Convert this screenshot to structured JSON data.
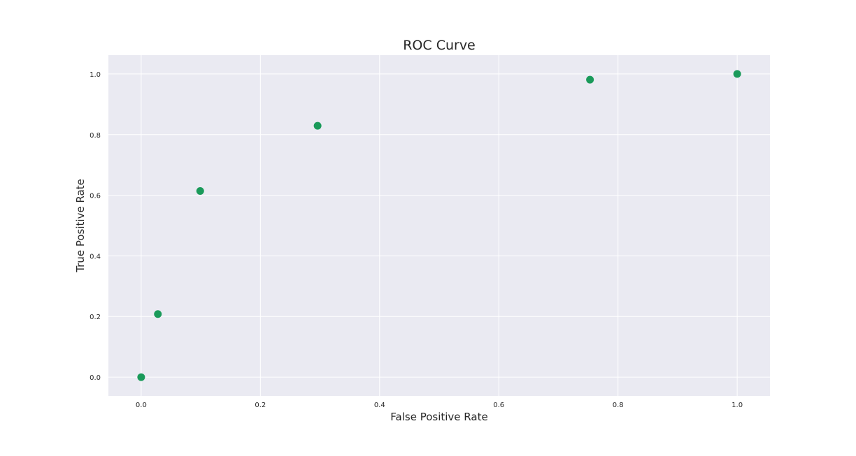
{
  "chart_data": {
    "type": "scatter",
    "title": "ROC Curve",
    "xlabel": "False Positive Rate",
    "ylabel": "True Positive Rate",
    "xlim": [
      -0.055,
      1.055
    ],
    "ylim": [
      -0.062,
      1.062
    ],
    "xticks": [
      0.0,
      0.2,
      0.4,
      0.6,
      0.8,
      1.0
    ],
    "yticks": [
      0.0,
      0.2,
      0.4,
      0.6,
      0.8,
      1.0
    ],
    "xtick_labels": [
      "0.0",
      "0.2",
      "0.4",
      "0.6",
      "0.8",
      "1.0"
    ],
    "ytick_labels": [
      "0.0",
      "0.2",
      "0.4",
      "0.6",
      "0.8",
      "1.0"
    ],
    "grid": true,
    "background": "#eaeaf2",
    "grid_color": "#ffffff",
    "point_color": "#1a9a5a",
    "series": [
      {
        "x": [
          0.0,
          0.028,
          0.099,
          0.296,
          0.753,
          1.0
        ],
        "y": [
          0.0,
          0.208,
          0.614,
          0.829,
          0.981,
          1.0
        ]
      }
    ]
  }
}
